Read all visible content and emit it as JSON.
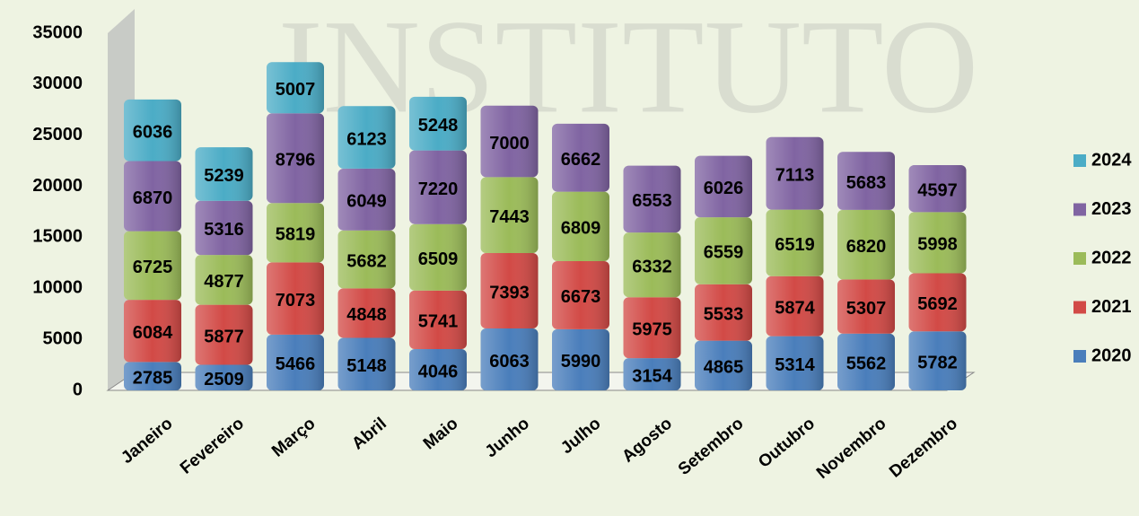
{
  "chart_data": {
    "type": "bar",
    "stacked": true,
    "watermark": "INSTITUTO",
    "categories": [
      "Janeiro",
      "Fevereiro",
      "Março",
      "Abril",
      "Maio",
      "Junho",
      "Julho",
      "Agosto",
      "Setembro",
      "Outubro",
      "Novembro",
      "Dezembro"
    ],
    "series": [
      {
        "name": "2020",
        "color": "#4a7ebb",
        "values": [
          2785,
          2509,
          5466,
          5148,
          4046,
          6063,
          5990,
          3154,
          4865,
          5314,
          5562,
          5782
        ]
      },
      {
        "name": "2021",
        "color": "#d24a46",
        "values": [
          6084,
          5877,
          7073,
          4848,
          5741,
          7393,
          6673,
          5975,
          5533,
          5874,
          5307,
          5692
        ]
      },
      {
        "name": "2022",
        "color": "#9bbb59",
        "values": [
          6725,
          4877,
          5819,
          5682,
          6509,
          7443,
          6809,
          6332,
          6559,
          6519,
          6820,
          5998
        ]
      },
      {
        "name": "2023",
        "color": "#8064a2",
        "values": [
          6870,
          5316,
          8796,
          6049,
          7220,
          7000,
          6662,
          6553,
          6026,
          7113,
          5683,
          4597
        ]
      },
      {
        "name": "2024",
        "color": "#4bacc6",
        "values": [
          6036,
          5239,
          5007,
          6123,
          5248,
          null,
          null,
          null,
          null,
          null,
          null,
          null
        ]
      }
    ],
    "ylim": [
      0,
      35000
    ],
    "yticks": [
      0,
      5000,
      10000,
      15000,
      20000,
      25000,
      30000,
      35000
    ],
    "legend": "right"
  }
}
